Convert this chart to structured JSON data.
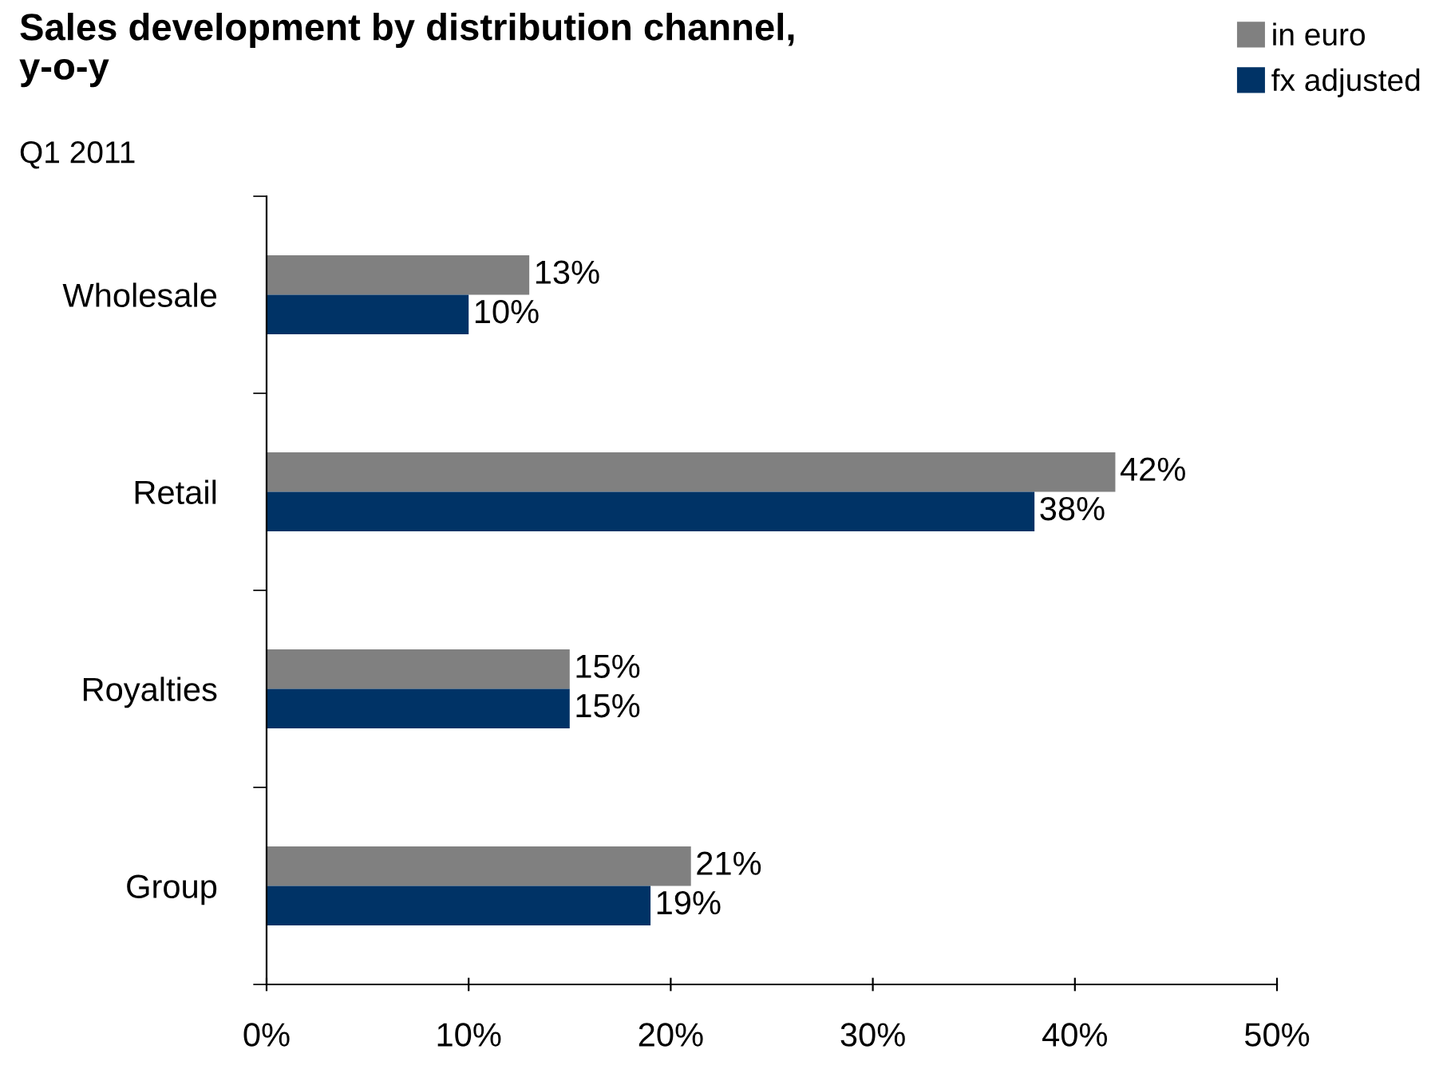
{
  "chart_data": {
    "type": "bar",
    "orientation": "horizontal",
    "title": "Sales development by distribution channel,\ny-o-y",
    "subtitle": "Q1 2011",
    "categories": [
      "Wholesale",
      "Retail",
      "Royalties",
      "Group"
    ],
    "series": [
      {
        "name": "in euro",
        "color": "#808080",
        "values": [
          13,
          42,
          15,
          21
        ],
        "value_labels": [
          "13%",
          "42%",
          "15%",
          "21%"
        ]
      },
      {
        "name": "fx adjusted",
        "color": "#003366",
        "values": [
          10,
          38,
          15,
          19
        ],
        "value_labels": [
          "10%",
          "38%",
          "15%",
          "19%"
        ]
      }
    ],
    "xlim": [
      0,
      50
    ],
    "xticks": [
      {
        "value": 0,
        "label": "0%"
      },
      {
        "value": 10,
        "label": "10%"
      },
      {
        "value": 20,
        "label": "20%"
      },
      {
        "value": 30,
        "label": "30%"
      },
      {
        "value": 40,
        "label": "40%"
      },
      {
        "value": 50,
        "label": "50%"
      }
    ],
    "grid": false,
    "legend": "top right"
  }
}
